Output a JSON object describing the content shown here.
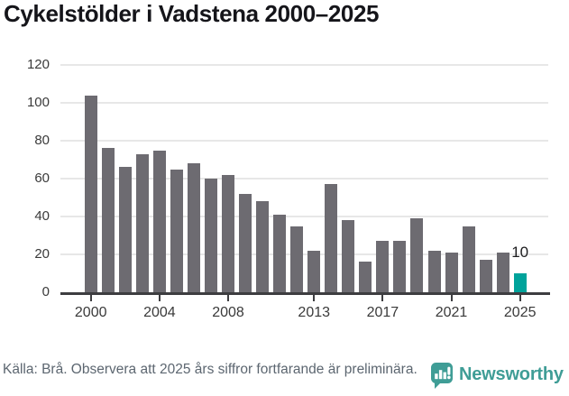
{
  "title": "Cykelstölder i Vadstena 2000–2025",
  "chart_data": {
    "type": "bar",
    "x": [
      2000,
      2001,
      2002,
      2003,
      2004,
      2005,
      2006,
      2007,
      2008,
      2009,
      2010,
      2011,
      2012,
      2013,
      2014,
      2015,
      2016,
      2017,
      2018,
      2019,
      2020,
      2021,
      2022,
      2023,
      2024,
      2025
    ],
    "values": [
      104,
      76,
      66,
      73,
      75,
      65,
      68,
      60,
      62,
      52,
      48,
      41,
      35,
      22,
      57,
      38,
      16,
      27,
      27,
      39,
      22,
      21,
      35,
      17,
      21,
      10
    ],
    "title": "Cykelstölder i Vadstena 2000–2025",
    "xlabel": "",
    "ylabel": "",
    "ylim": [
      0,
      120
    ],
    "y_ticks": [
      0,
      20,
      40,
      60,
      80,
      100,
      120
    ],
    "x_tick_years": [
      2000,
      2004,
      2008,
      2013,
      2017,
      2021,
      2025
    ],
    "grid": true,
    "legend_position": "none",
    "highlight_year": 2025,
    "highlight_value_label": "10"
  },
  "colors": {
    "bar": "#6d6b71",
    "highlight_bar": "#00a39b",
    "grid": "#e7e7e7",
    "axis": "#3d3d40",
    "tick_text": "#3a3a3a",
    "annotation_text": "#1d1d1f",
    "source_text": "#5c6670",
    "brand_teal": "#3f9d96"
  },
  "footer": {
    "source_text": "Källa: Brå. Observera att 2025 års siffror fortfarande är preliminära.",
    "brand": "Newsworthy"
  },
  "icons": {
    "brand_logo": "newsworthy-speech-bubble-chart-icon"
  }
}
